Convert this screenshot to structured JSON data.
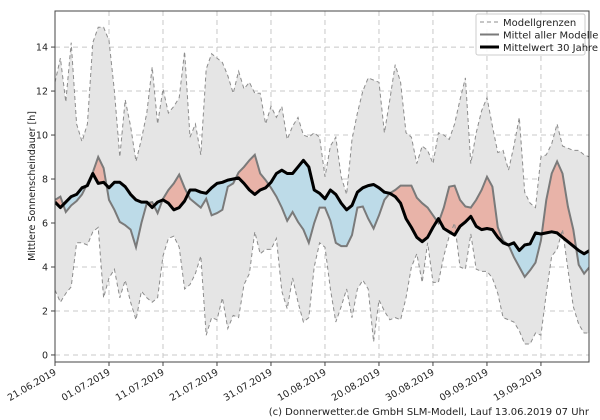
{
  "chart_data": {
    "type": "area",
    "title": "",
    "xlabel": "",
    "ylabel": "Mittlere Sonnenscheindauer [h]",
    "ylim": [
      -0.32,
      15.64
    ],
    "xlim_days": [
      0,
      98.9
    ],
    "grid": true,
    "legend_placement": "top-right",
    "y_ticks": [
      0,
      2,
      4,
      6,
      8,
      10,
      12,
      14
    ],
    "x_ticks": [
      {
        "day": 0,
        "label": "21.06.2019"
      },
      {
        "day": 10,
        "label": "01.07.2019"
      },
      {
        "day": 20,
        "label": "11.07.2019"
      },
      {
        "day": 30,
        "label": "21.07.2019"
      },
      {
        "day": 40,
        "label": "31.07.2019"
      },
      {
        "day": 50,
        "label": "10.08.2019"
      },
      {
        "day": 60,
        "label": "20.08.2019"
      },
      {
        "day": 70,
        "label": "30.08.2019"
      },
      {
        "day": 80,
        "label": "09.09.2019"
      },
      {
        "day": 90,
        "label": "19.09.2019"
      }
    ],
    "legend": [
      "Modellgrenzen",
      "Mittel aller Modelle",
      "Mittelwert 30 Jahre"
    ],
    "series": [
      {
        "name": "Modellgrenzen oben",
        "values": [
          12.4,
          13.5,
          11.5,
          14.2,
          10.5,
          9.7,
          10.5,
          14.2,
          14.9,
          14.9,
          14.3,
          12,
          9,
          11.6,
          10.4,
          8.8,
          9.8,
          11,
          13.1,
          10.5,
          12.1,
          11,
          11.3,
          11.7,
          13.8,
          9.9,
          10.5,
          9.1,
          13,
          13.7,
          13.5,
          13.3,
          12.7,
          11.9,
          12.9,
          12.1,
          12.4,
          11.9,
          11.9,
          10.5,
          11.3,
          10.8,
          11.3,
          9.8,
          10.4,
          10.8,
          10,
          9.9,
          10.1,
          9.9,
          8.1,
          9.5,
          9.9,
          8.1,
          7.3,
          9.8,
          11,
          12,
          12.6,
          12.5,
          12.4,
          10.1,
          11.6,
          13.2,
          12.4,
          10.1,
          9.9,
          8.7,
          9.5,
          9.3,
          8.7,
          10.1,
          10,
          9.8,
          10.5,
          11.6,
          12.6,
          8.7,
          10.1,
          11.1,
          11.7,
          10.4,
          9.2,
          9.3,
          8.4,
          9.5,
          10.8,
          7.4,
          6.9,
          6.7,
          9,
          9.1,
          9.6,
          10.5,
          9.5,
          9.4,
          9.3,
          9.3,
          9.1,
          9.0
        ]
      },
      {
        "name": "Modellgrenzen unten",
        "values": [
          2.95,
          2.4,
          2.8,
          3.1,
          5.1,
          5.1,
          5.0,
          5.6,
          5.8,
          2.6,
          3.5,
          3.9,
          2.6,
          3.4,
          2.4,
          1.6,
          2.9,
          2.6,
          2.4,
          2.6,
          4.5,
          5.3,
          5.4,
          4.9,
          3.0,
          3.2,
          3.7,
          4.5,
          0.9,
          1.7,
          1.6,
          2.6,
          1.2,
          1.8,
          1.7,
          3.2,
          3.7,
          5.6,
          4.6,
          4.8,
          4.8,
          5.3,
          2.9,
          2.1,
          3.5,
          2.4,
          1.5,
          1.7,
          4.0,
          5.1,
          4.9,
          3.0,
          1.5,
          2.2,
          3.0,
          1.7,
          3.0,
          3.4,
          3.0,
          0.6,
          2.5,
          2.0,
          1.6,
          1.7,
          1.6,
          2.6,
          4.0,
          4.6,
          3.3,
          5.1,
          3.3,
          3.3,
          4.5,
          5.4,
          6.0,
          4.0,
          3.9,
          5.5,
          3.9,
          3.8,
          3.8,
          3.5,
          2.8,
          1.7,
          1.6,
          1.5,
          1.1,
          0.5,
          0.5,
          1.0,
          0.9,
          2.8,
          4.5,
          4.8,
          5.7,
          3.9,
          2.2,
          1.4,
          1.0,
          1.0
        ]
      },
      {
        "name": "Mittel aller Modelle",
        "values": [
          7.05,
          7.2,
          6.5,
          6.8,
          7.0,
          7.3,
          7.8,
          8.3,
          9.0,
          8.5,
          7.05,
          6.6,
          6.05,
          5.9,
          5.7,
          4.9,
          6.0,
          6.9,
          6.95,
          6.45,
          7.1,
          7.5,
          7.8,
          8.2,
          7.6,
          7.1,
          6.9,
          6.7,
          7.1,
          6.35,
          6.45,
          6.6,
          7.65,
          7.8,
          8.3,
          8.55,
          8.85,
          9.1,
          8.25,
          7.95,
          7.6,
          7.2,
          6.7,
          6.1,
          6.5,
          6.05,
          5.7,
          5.1,
          6.0,
          6.7,
          6.7,
          6.1,
          5.1,
          4.95,
          4.95,
          5.45,
          6.7,
          6.75,
          6.2,
          5.75,
          6.35,
          7.05,
          7.35,
          7.5,
          7.7,
          7.7,
          7.7,
          7.15,
          6.9,
          6.7,
          6.35,
          6.0,
          6.7,
          7.65,
          7.7,
          7.05,
          6.75,
          6.7,
          7.05,
          7.5,
          8.1,
          7.65,
          5.8,
          5.2,
          5.0,
          4.45,
          4.0,
          3.55,
          3.85,
          4.2,
          5.2,
          7.05,
          8.25,
          8.8,
          8.25,
          6.75,
          5.7,
          4.1,
          3.7,
          4.0
        ]
      },
      {
        "name": "Mittelwert 30 Jahre",
        "values": [
          6.95,
          6.7,
          6.95,
          7.2,
          7.3,
          7.6,
          7.7,
          8.25,
          7.8,
          7.85,
          7.6,
          7.85,
          7.85,
          7.65,
          7.3,
          7.05,
          6.95,
          6.95,
          6.7,
          6.95,
          7.05,
          6.9,
          6.6,
          6.7,
          7.0,
          7.5,
          7.5,
          7.4,
          7.35,
          7.6,
          7.8,
          7.85,
          7.95,
          8.0,
          8.05,
          7.8,
          7.5,
          7.3,
          7.5,
          7.6,
          7.85,
          8.25,
          8.4,
          8.25,
          8.25,
          8.55,
          8.85,
          8.55,
          7.5,
          7.35,
          7.1,
          7.5,
          7.3,
          6.9,
          6.6,
          6.8,
          7.4,
          7.6,
          7.7,
          7.75,
          7.6,
          7.4,
          7.35,
          7.2,
          6.9,
          6.2,
          5.8,
          5.35,
          5.15,
          5.35,
          5.8,
          6.2,
          5.75,
          5.6,
          5.45,
          5.85,
          6.05,
          6.3,
          5.85,
          5.7,
          5.75,
          5.7,
          5.35,
          5.1,
          5.0,
          5.1,
          4.75,
          5.0,
          5.05,
          5.55,
          5.5,
          5.55,
          5.6,
          5.55,
          5.35,
          5.15,
          4.95,
          4.75,
          4.6,
          4.75
        ]
      }
    ],
    "colors": {
      "band": "#e5e5e5",
      "above": "#e8b3a8",
      "below": "#bddbe8",
      "model_line": "#7a7a7a",
      "climate_line": "#000000",
      "bounds_line": "#8c8c8c"
    }
  },
  "footer": "(c) Donnerwetter.de GmbH SLM-Modell, Lauf 13.06.2019 07 Uhr"
}
